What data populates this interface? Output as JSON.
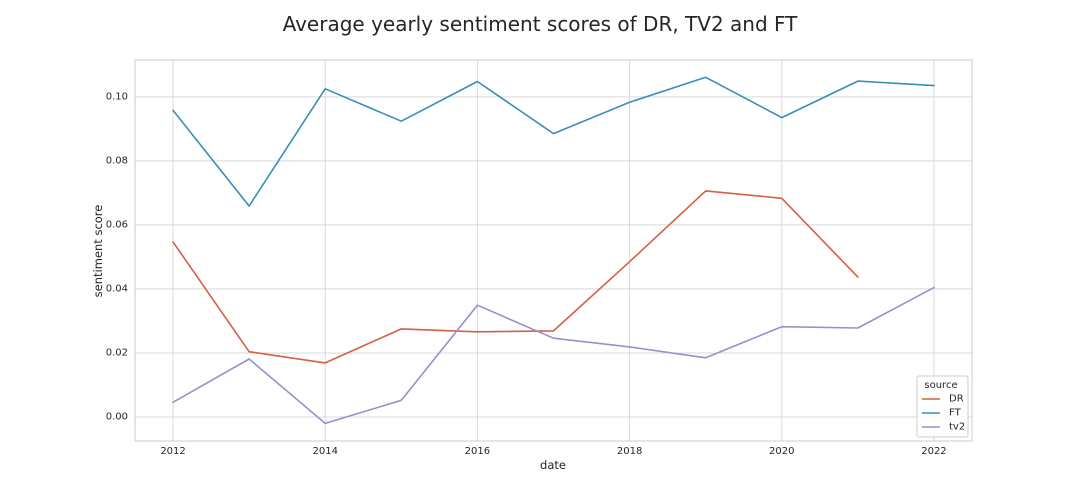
{
  "chart_data": {
    "type": "line",
    "title": "Average yearly sentiment scores of DR, TV2 and FT",
    "xlabel": "date",
    "ylabel": "sentiment score",
    "xlim": [
      2011.5,
      2022.5
    ],
    "ylim": [
      -0.0075,
      0.1115
    ],
    "xticks": [
      "2012",
      "2014",
      "2016",
      "2018",
      "2020",
      "2022"
    ],
    "yticks": [
      "0.00",
      "0.02",
      "0.04",
      "0.06",
      "0.08",
      "0.10"
    ],
    "grid": true,
    "legend": {
      "title": "source",
      "placement": "bottom-right"
    },
    "series": [
      {
        "name": "DR",
        "color": "#d65f44",
        "x": [
          2012,
          2013,
          2014,
          2015,
          2016,
          2017,
          2018,
          2019,
          2020,
          2021
        ],
        "y": [
          0.0547,
          0.0204,
          0.0169,
          0.0275,
          0.0266,
          0.0269,
          0.0485,
          0.0706,
          0.0683,
          0.0437
        ]
      },
      {
        "name": "FT",
        "color": "#3a8db9",
        "x": [
          2012,
          2013,
          2014,
          2015,
          2016,
          2017,
          2018,
          2019,
          2020,
          2021,
          2022
        ],
        "y": [
          0.0958,
          0.0659,
          0.1025,
          0.0924,
          0.1048,
          0.0885,
          0.0983,
          0.1061,
          0.0935,
          0.1049,
          0.1035
        ]
      },
      {
        "name": "tv2",
        "color": "#9a8fcb",
        "x": [
          2012,
          2013,
          2014,
          2015,
          2016,
          2017,
          2018,
          2019,
          2020,
          2021,
          2022
        ],
        "y": [
          0.0046,
          0.0181,
          -0.002,
          0.0052,
          0.0349,
          0.0246,
          0.0219,
          0.0185,
          0.0282,
          0.0278,
          0.0404
        ]
      }
    ]
  }
}
